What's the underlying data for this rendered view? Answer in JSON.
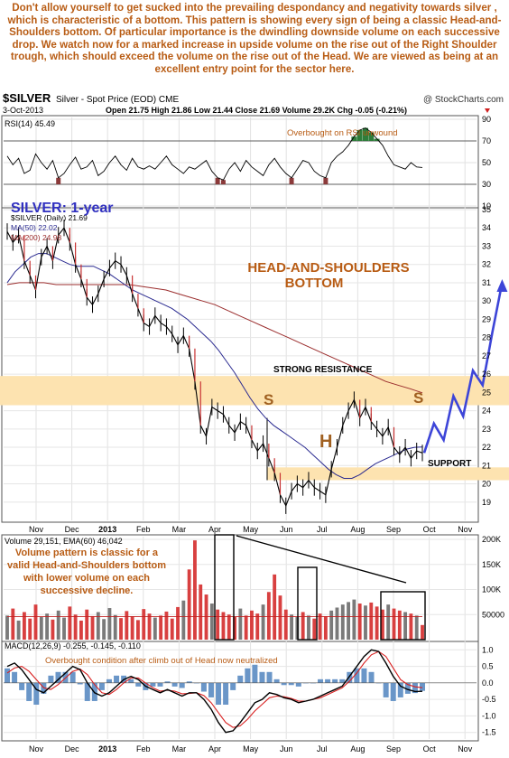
{
  "intro_text": "Don't allow yourself to get sucked into the prevailing despondancy and negativity towards silver , which is characteristic of a bottom. This pattern is showing every sign of being a classic Head-and-Shoulders bottom. Of particular importance is the dwindling downside volume on each successive drop. We watch now for a marked increase in upside volume on the rise out of the Right Shoulder trough, which should exceed the volume on the rise out of the Head. We are viewed as being at an excellent entry point for the sector here.",
  "header": {
    "symbol": "$SILVER",
    "description": "Silver - Spot Price (EOD) CME",
    "watermark": "@ StockCharts.com",
    "date": "3-Oct-2013",
    "ohlc": "Open 21.75  High 21.86  Low 21.44  Close 21.69  Volume 29.2K  Chg -0.05 (-0.21%)",
    "chg_icon": "down-triangle-icon"
  },
  "colors": {
    "annotation": "#b85c14",
    "title_blue": "#3030c0",
    "price_black": "#000000",
    "ma50": "#2a2a90",
    "ma200": "#9b2d2d",
    "band": "#fde3b0",
    "projection": "#3d45d8",
    "rsi_over": "#2e7d3a",
    "rsi_under": "#8b3a3a",
    "vol_bar_gray": "#7a7a7a",
    "vol_bar_red": "#d84040",
    "macd_hist": "#6a96c8",
    "macd_signal": "#d82020"
  },
  "chart_data": [
    {
      "panel": "rsi",
      "type": "line",
      "legend": "RSI(14) 45.49",
      "annotation": "Overbought on RSI unwound",
      "ylim": [
        10,
        90
      ],
      "ticks": [
        10,
        30,
        50,
        70,
        90
      ],
      "reference_lines": [
        30,
        70
      ],
      "values": [
        56,
        48,
        54,
        40,
        43,
        58,
        50,
        44,
        52,
        36,
        40,
        48,
        55,
        44,
        46,
        52,
        38,
        42,
        50,
        56,
        48,
        43,
        54,
        46,
        44,
        47,
        44,
        50,
        56,
        48,
        44,
        40,
        46,
        44,
        48,
        52,
        42,
        36,
        34,
        44,
        50,
        42,
        52,
        46,
        42,
        38,
        48,
        54,
        46,
        40,
        36,
        44,
        52,
        50,
        42,
        38,
        36,
        50,
        56,
        60,
        66,
        74,
        80,
        82,
        78,
        72,
        66,
        56,
        48,
        46,
        44,
        50,
        46,
        45.49
      ]
    },
    {
      "panel": "price",
      "type": "line",
      "title": "SILVER: 1-year",
      "legend": [
        "$SILVER (Daily) 21.69",
        "MA(50) 22.02",
        "MA(200) 24.98"
      ],
      "pattern_label": "HEAD-AND-SHOULDERS BOTTOM",
      "resistance_label": "STRONG RESISTANCE",
      "support_label": "SUPPORT",
      "shoulder_labels": [
        "S",
        "H",
        "S"
      ],
      "ylim": [
        18,
        35
      ],
      "ticks": [
        19,
        20,
        21,
        22,
        23,
        24,
        25,
        26,
        27,
        28,
        29,
        30,
        31,
        32,
        33,
        34,
        35
      ],
      "x_labels": [
        "Nov",
        "Dec",
        "2013",
        "Feb",
        "Mar",
        "Apr",
        "May",
        "Jun",
        "Jul",
        "Aug",
        "Sep",
        "Oct",
        "Nov"
      ],
      "series": [
        {
          "name": "$SILVER (Daily) 21.69",
          "values": [
            33.8,
            33.2,
            33.6,
            32.2,
            31.4,
            30.6,
            32.4,
            33.0,
            32.2,
            33.6,
            34.0,
            33.2,
            32.0,
            31.2,
            30.2,
            29.8,
            30.4,
            31.2,
            31.8,
            32.2,
            32.0,
            31.4,
            30.4,
            29.6,
            28.8,
            28.6,
            29.2,
            28.8,
            28.6,
            28.2,
            27.6,
            28.1,
            27.4,
            25.6,
            23.2,
            22.6,
            24.2,
            24.0,
            23.8,
            23.2,
            22.8,
            23.4,
            23.2,
            22.4,
            21.8,
            22.2,
            21.4,
            20.6,
            19.4,
            18.8,
            19.6,
            20.0,
            19.8,
            20.2,
            19.8,
            19.6,
            19.4,
            20.8,
            22.0,
            23.2,
            24.0,
            24.6,
            23.6,
            24.2,
            23.4,
            23.0,
            22.6,
            23.1,
            22.0,
            21.6,
            22.0,
            21.4,
            21.8,
            21.69
          ]
        },
        {
          "name": "MA(50) 22.02",
          "values": [
            31.0,
            31.6,
            32.0,
            32.4,
            32.6,
            32.6,
            32.4,
            32.2,
            32.0,
            31.9,
            31.9,
            31.9,
            31.7,
            31.5,
            31.2,
            30.9,
            30.6,
            30.4,
            30.2,
            30.0,
            29.8,
            29.6,
            29.3,
            29.0,
            28.6,
            28.2,
            27.8,
            27.3,
            26.7,
            26.1,
            25.4,
            24.7,
            24.1,
            23.6,
            23.2,
            22.9,
            22.6,
            22.3,
            22.0,
            21.6,
            21.2,
            20.8,
            20.5,
            20.3,
            20.3,
            20.5,
            20.8,
            21.1,
            21.3,
            21.5,
            21.7,
            21.9,
            22.0,
            22.02
          ]
        },
        {
          "name": "MA(200) 24.98",
          "values": [
            30.9,
            31.0,
            31.0,
            31.0,
            30.9,
            30.9,
            30.9,
            30.9,
            30.9,
            30.9,
            30.9,
            30.8,
            30.7,
            30.6,
            30.4,
            30.2,
            30.0,
            29.8,
            29.5,
            29.2,
            28.9,
            28.6,
            28.3,
            28.0,
            27.7,
            27.4,
            27.1,
            26.8,
            26.5,
            26.2,
            25.9,
            25.6,
            25.4,
            25.2,
            24.98
          ]
        }
      ],
      "resistance_band": [
        24.3,
        25.9
      ],
      "support_band": [
        20.2,
        20.9
      ],
      "projection": [
        21.69,
        23.3,
        22.4,
        24.8,
        23.7,
        26.2,
        25.4,
        28.3,
        31.0
      ]
    },
    {
      "panel": "volume",
      "type": "bar",
      "legend": "Volume 29,151, EMA(60) 46,042",
      "annotation": "Volume pattern is classic for a valid Head-and-Shoulders bottom with lower volume on each successive decline.",
      "ylim": [
        0,
        200000
      ],
      "ticks": [
        50000,
        100000,
        150000,
        200000
      ],
      "tick_labels": [
        "50000",
        "100K",
        "150K",
        "200K"
      ],
      "values": [
        48000,
        62000,
        38000,
        55000,
        42000,
        70000,
        45000,
        52000,
        40000,
        58000,
        44000,
        66000,
        50000,
        38000,
        60000,
        47000,
        55000,
        41000,
        63000,
        49000,
        43000,
        57000,
        46000,
        39000,
        61000,
        52000,
        44000,
        48000,
        56000,
        42000,
        65000,
        78000,
        140000,
        198000,
        110000,
        90000,
        72000,
        60000,
        55000,
        50000,
        45000,
        62000,
        48000,
        58000,
        52000,
        70000,
        95000,
        130000,
        88000,
        60000,
        50000,
        45000,
        55000,
        48000,
        42000,
        52000,
        46000,
        58000,
        64000,
        70000,
        75000,
        80000,
        72000,
        68000,
        74000,
        66000,
        60000,
        70000,
        62000,
        58000,
        55000,
        52000,
        48000,
        29151
      ],
      "ema": 46042
    },
    {
      "panel": "macd",
      "type": "line",
      "legend": "MACD(12,26,9) -0.255, -0.145, -0.110",
      "annotation": "Overbought condition after climb out of Head now neutralized",
      "ylim": [
        -1.7,
        1.2
      ],
      "ticks": [
        -1.5,
        -1.0,
        -0.5,
        0.0,
        0.5,
        1.0
      ],
      "x_labels": [
        "Nov",
        "Dec",
        "2013",
        "Feb",
        "Mar",
        "Apr",
        "May",
        "Jun",
        "Jul",
        "Aug",
        "Sep",
        "Oct",
        "Nov"
      ],
      "series": [
        {
          "name": "MACD",
          "values": [
            0.5,
            0.6,
            0.4,
            0.1,
            -0.2,
            -0.3,
            -0.1,
            0.1,
            0.3,
            0.5,
            0.4,
            0.0,
            -0.3,
            -0.4,
            -0.3,
            -0.1,
            0.1,
            0.2,
            0.1,
            -0.1,
            -0.2,
            -0.3,
            -0.2,
            -0.3,
            -0.4,
            -0.3,
            -0.3,
            -0.5,
            -0.8,
            -1.2,
            -1.5,
            -1.45,
            -1.2,
            -0.9,
            -0.6,
            -0.5,
            -0.3,
            -0.35,
            -0.45,
            -0.5,
            -0.6,
            -0.55,
            -0.5,
            -0.4,
            -0.3,
            -0.2,
            -0.1,
            0.2,
            0.5,
            0.8,
            1.0,
            0.95,
            0.6,
            0.2,
            -0.1,
            -0.2,
            -0.26,
            -0.255
          ]
        },
        {
          "name": "Signal",
          "values": [
            0.3,
            0.45,
            0.5,
            0.35,
            0.1,
            -0.15,
            -0.2,
            -0.05,
            0.15,
            0.35,
            0.42,
            0.25,
            -0.05,
            -0.3,
            -0.35,
            -0.2,
            0.0,
            0.15,
            0.15,
            0.0,
            -0.15,
            -0.25,
            -0.22,
            -0.25,
            -0.33,
            -0.32,
            -0.3,
            -0.38,
            -0.6,
            -0.9,
            -1.2,
            -1.35,
            -1.3,
            -1.1,
            -0.85,
            -0.65,
            -0.45,
            -0.4,
            -0.42,
            -0.47,
            -0.55,
            -0.55,
            -0.5,
            -0.45,
            -0.35,
            -0.25,
            -0.15,
            0.05,
            0.3,
            0.6,
            0.85,
            0.95,
            0.8,
            0.45,
            0.1,
            -0.05,
            -0.12,
            -0.145
          ]
        }
      ]
    }
  ]
}
